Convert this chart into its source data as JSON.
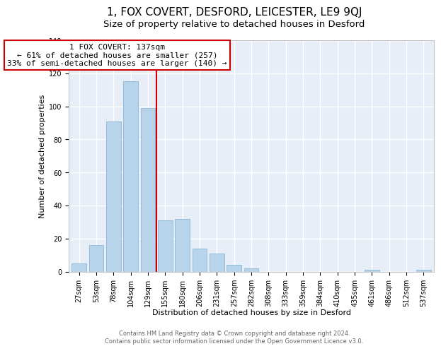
{
  "title": "1, FOX COVERT, DESFORD, LEICESTER, LE9 9QJ",
  "subtitle": "Size of property relative to detached houses in Desford",
  "xlabel": "Distribution of detached houses by size in Desford",
  "ylabel": "Number of detached properties",
  "bar_labels": [
    "27sqm",
    "53sqm",
    "78sqm",
    "104sqm",
    "129sqm",
    "155sqm",
    "180sqm",
    "206sqm",
    "231sqm",
    "257sqm",
    "282sqm",
    "308sqm",
    "333sqm",
    "359sqm",
    "384sqm",
    "410sqm",
    "435sqm",
    "461sqm",
    "486sqm",
    "512sqm",
    "537sqm"
  ],
  "bar_values": [
    5,
    16,
    91,
    115,
    99,
    31,
    32,
    14,
    11,
    4,
    2,
    0,
    0,
    0,
    0,
    0,
    0,
    1,
    0,
    0,
    1
  ],
  "bar_color": "#b8d4ea",
  "bar_edgecolor": "#7aaecf",
  "vline_x": 4.5,
  "vline_color": "#cc0000",
  "annotation_title": "1 FOX COVERT: 137sqm",
  "annotation_line1": "← 61% of detached houses are smaller (257)",
  "annotation_line2": "33% of semi-detached houses are larger (140) →",
  "annotation_box_facecolor": "#ffffff",
  "annotation_box_edgecolor": "#cc0000",
  "ylim": [
    0,
    140
  ],
  "yticks": [
    0,
    20,
    40,
    60,
    80,
    100,
    120,
    140
  ],
  "footnote1": "Contains HM Land Registry data © Crown copyright and database right 2024.",
  "footnote2": "Contains public sector information licensed under the Open Government Licence v3.0.",
  "plot_bg_color": "#e8eef8",
  "fig_bg_color": "#ffffff",
  "grid_color": "#ffffff",
  "title_fontsize": 11,
  "subtitle_fontsize": 9.5,
  "tick_fontsize": 7,
  "ylabel_fontsize": 8,
  "xlabel_fontsize": 8,
  "annot_fontsize": 8,
  "footnote_fontsize": 6
}
